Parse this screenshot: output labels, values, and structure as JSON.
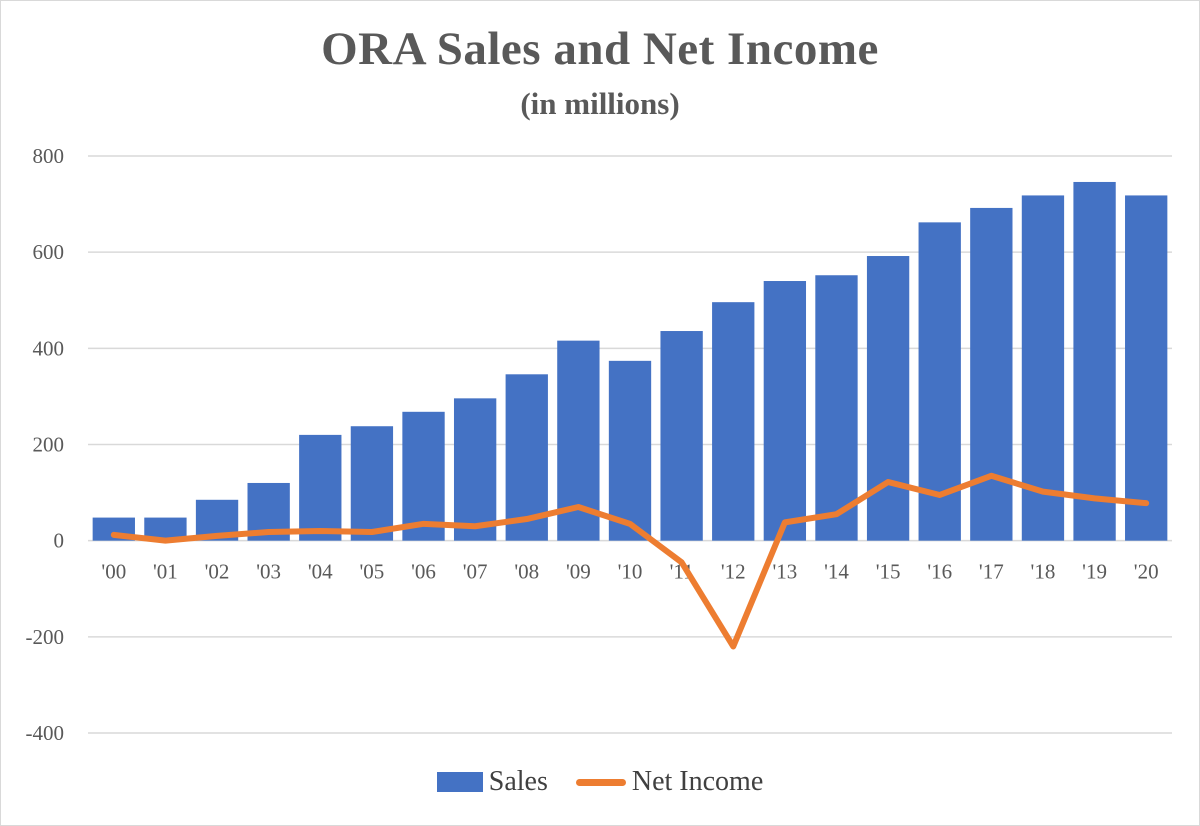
{
  "title": "ORA Sales and Net Income",
  "subtitle": "(in millions)",
  "legend": {
    "sales_label": "Sales",
    "net_income_label": "Net Income"
  },
  "colors": {
    "sales": "#4472C4",
    "net_income": "#ED7D31",
    "grid": "#d9d9d9",
    "text": "#595959"
  },
  "chart_data": {
    "type": "bar",
    "title": "ORA Sales and Net Income",
    "subtitle": "(in millions)",
    "categories": [
      "'00",
      "'01",
      "'02",
      "'03",
      "'04",
      "'05",
      "'06",
      "'07",
      "'08",
      "'09",
      "'10",
      "'11",
      "'12",
      "'13",
      "'14",
      "'15",
      "'16",
      "'17",
      "'18",
      "'19",
      "'20"
    ],
    "series": [
      {
        "name": "Sales",
        "type": "bar",
        "values": [
          48,
          48,
          85,
          120,
          220,
          238,
          268,
          296,
          346,
          416,
          374,
          436,
          496,
          540,
          552,
          592,
          662,
          692,
          718,
          746,
          718
        ]
      },
      {
        "name": "Net Income",
        "type": "line",
        "values": [
          12,
          0,
          10,
          18,
          20,
          18,
          35,
          30,
          45,
          70,
          35,
          -45,
          -220,
          38,
          55,
          122,
          95,
          135,
          102,
          88,
          78
        ]
      }
    ],
    "yticks": [
      800,
      600,
      400,
      200,
      0,
      -200,
      -400
    ],
    "ylim": [
      -400,
      800
    ],
    "grid": true,
    "legend_position": "bottom"
  }
}
